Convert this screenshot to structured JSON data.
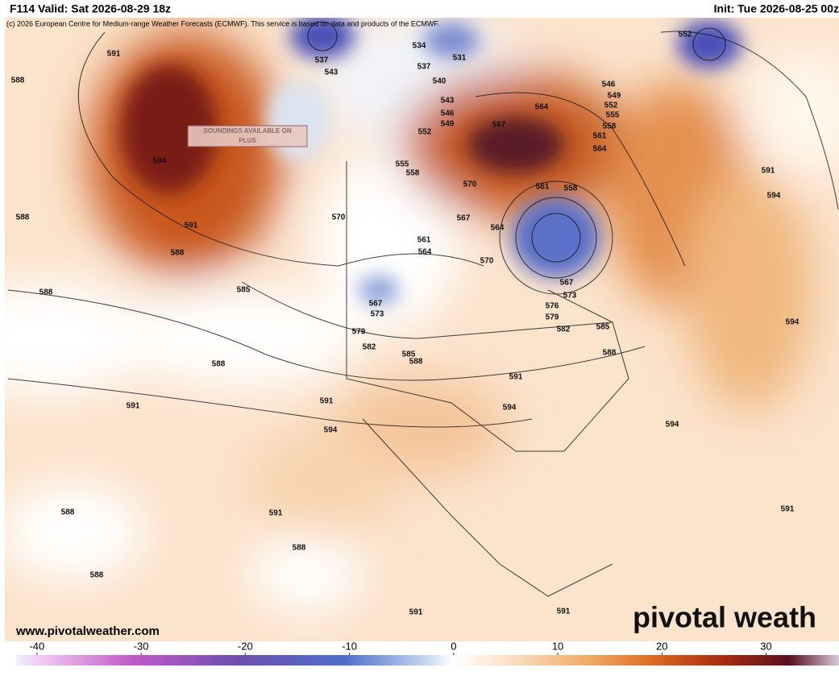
{
  "header": {
    "left": "F114 Valid: Sat 2026-08-29 18z",
    "right": "Init: Tue 2026-08-25 00z"
  },
  "copyright": "(c) 2026 European Centre for Medium-range Weather Forecasts (ECMWF). This service is based on data and products of the ECMWF.",
  "soundings_box": {
    "line1": "SOUNDINGS AVAILABLE ON",
    "line2": "PLUS"
  },
  "website": "www.pivotalweather.com",
  "logo": "pivotal weath",
  "contour_labels": [
    "591",
    "588",
    "594",
    "588",
    "591",
    "588",
    "585",
    "588",
    "588",
    "591",
    "591",
    "594",
    "588",
    "591",
    "588",
    "588",
    "591",
    "591",
    "537",
    "543",
    "534",
    "531",
    "537",
    "540",
    "543",
    "546",
    "549",
    "552",
    "555",
    "558",
    "567",
    "570",
    "567",
    "564",
    "561",
    "564",
    "570",
    "570",
    "567",
    "573",
    "579",
    "582",
    "585",
    "588",
    "591",
    "594",
    "564",
    "561",
    "558",
    "567",
    "573",
    "576",
    "579",
    "582",
    "585",
    "588",
    "552",
    "546",
    "549",
    "552",
    "555",
    "558",
    "561",
    "564",
    "591",
    "594",
    "594",
    "594",
    "591"
  ],
  "colorbar": {
    "lim": [
      -42,
      37
    ],
    "ticks": [
      -40,
      -30,
      -20,
      -10,
      0,
      10,
      20,
      30
    ]
  }
}
